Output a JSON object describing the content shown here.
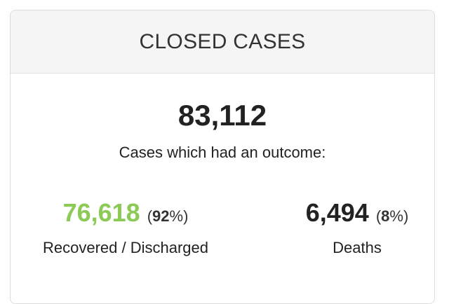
{
  "header": {
    "title": "CLOSED CASES"
  },
  "summary": {
    "total": "83,112",
    "caption": "Cases which had an outcome:"
  },
  "columns": [
    {
      "number": "76,618",
      "percent": {
        "open": "(",
        "value": "92",
        "close": "%)"
      },
      "label": "Recovered / Discharged"
    },
    {
      "number": "6,494",
      "percent": {
        "open": "(",
        "value": "8",
        "close": "%)"
      },
      "label": "Deaths"
    }
  ]
}
